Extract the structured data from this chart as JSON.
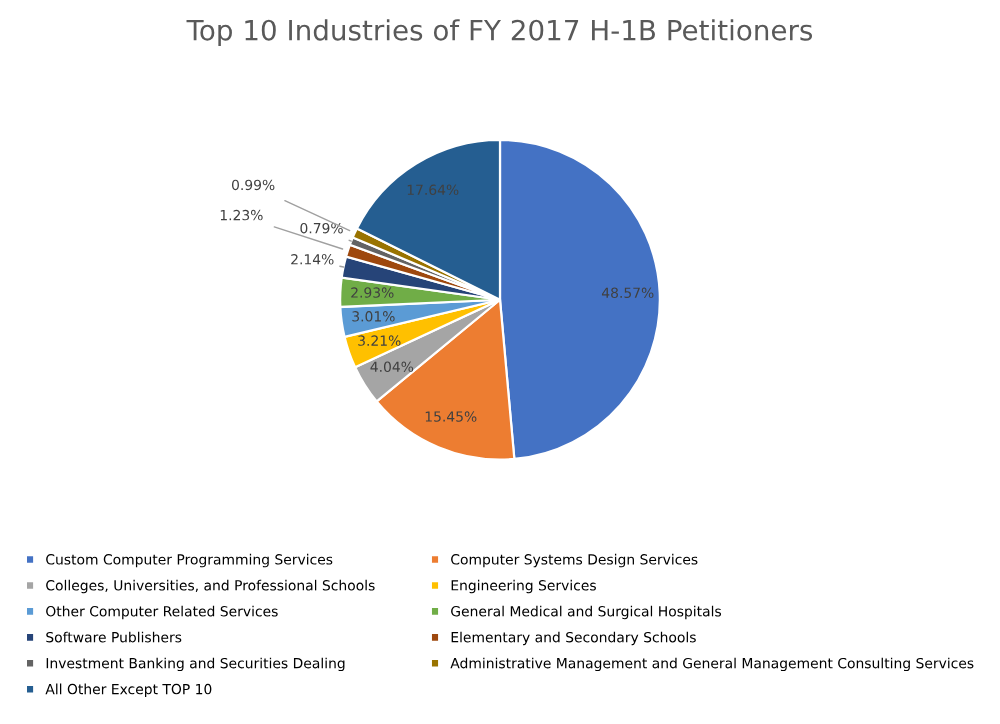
{
  "chart_data": {
    "type": "pie",
    "title": "Top 10 Industries of FY 2017 H-1B Petitioners",
    "categories": [
      "Custom Computer Programming Services",
      "Computer Systems Design Services",
      "Colleges, Universities, and Professional Schools",
      "Engineering Services",
      "Other Computer Related Services",
      "General Medical and Surgical Hospitals",
      "Software Publishers",
      "Elementary and Secondary Schools",
      "Investment Banking and Securities Dealing",
      "Administrative Management and General Management Consulting Services",
      "All Other Except TOP 10"
    ],
    "values": [
      48.57,
      15.45,
      4.04,
      3.21,
      3.01,
      2.93,
      2.14,
      1.23,
      0.79,
      0.99,
      17.64
    ],
    "colors": [
      "#4472c4",
      "#ed7d31",
      "#a5a5a5",
      "#ffc000",
      "#5b9bd5",
      "#70ad47",
      "#264478",
      "#9e480e",
      "#636363",
      "#997300",
      "#255e91"
    ],
    "value_labels": [
      "48.57%",
      "15.45%",
      "4.04%",
      "3.21%",
      "3.01%",
      "2.93%",
      "2.14%",
      "1.23%",
      "0.79%",
      "0.99%",
      "17.64%"
    ],
    "legend": "bottom"
  }
}
